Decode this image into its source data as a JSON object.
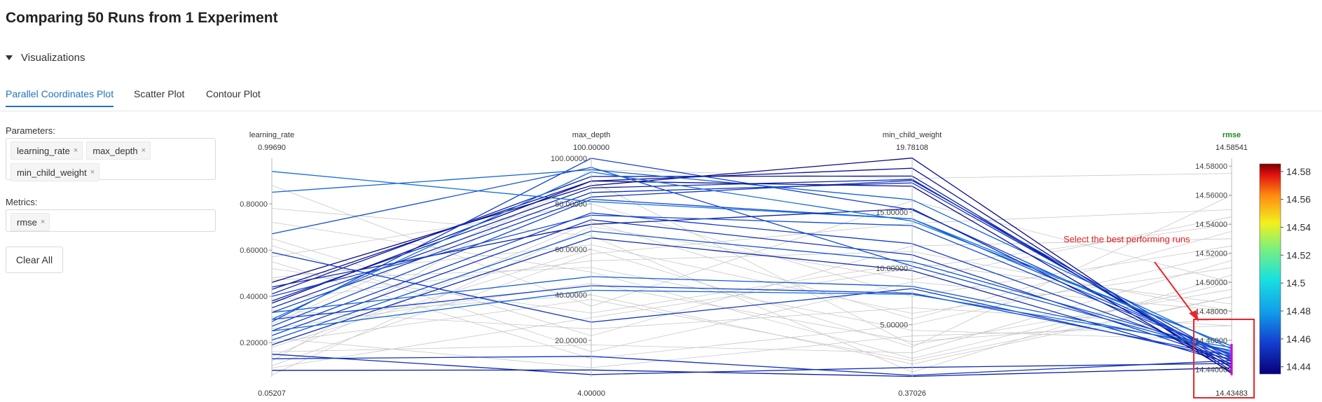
{
  "page": {
    "title": "Comparing 50 Runs from 1 Experiment"
  },
  "visualizations": {
    "label": "Visualizations"
  },
  "tabs": [
    {
      "label": "Parallel Coordinates Plot"
    },
    {
      "label": "Scatter Plot"
    },
    {
      "label": "Contour Plot"
    }
  ],
  "parameters": {
    "label": "Parameters:",
    "chips": [
      "learning_rate",
      "max_depth",
      "min_child_weight"
    ],
    "remove_glyph": "×"
  },
  "metrics": {
    "label": "Metrics:",
    "chips": [
      "rmse"
    ],
    "remove_glyph": "×"
  },
  "clear_all": {
    "label": "Clear All"
  },
  "annotation": {
    "text": "Select the best performing runs",
    "color": "#e02020"
  },
  "colors": {
    "highlight": "#e8262b",
    "brush": "#d500d5",
    "active_metric": "#1a8a1a",
    "context_line": "#c8c8c8"
  },
  "chart_data": {
    "type": "parallel_coordinates",
    "axes": [
      {
        "name": "learning_rate",
        "max_label": "0.99690",
        "min_label": "0.05207",
        "min": 0.05207,
        "max": 0.9969,
        "ticks": [
          0.2,
          0.4,
          0.6,
          0.8
        ],
        "tick_labels": [
          "0.20000",
          "0.40000",
          "0.60000",
          "0.80000"
        ]
      },
      {
        "name": "max_depth",
        "max_label": "100.00000",
        "min_label": "4.00000",
        "min": 4,
        "max": 100,
        "ticks": [
          20,
          40,
          60,
          80,
          100
        ],
        "tick_labels": [
          "20.00000",
          "40.00000",
          "60.00000",
          "80.00000",
          "100.00000"
        ]
      },
      {
        "name": "min_child_weight",
        "max_label": "19.78108",
        "min_label": "0.37026",
        "min": 0.37026,
        "max": 19.78108,
        "ticks": [
          5,
          10,
          15
        ],
        "tick_labels": [
          "5.00000",
          "10.00000",
          "15.00000"
        ]
      },
      {
        "name": "rmse",
        "max_label": "14.58541",
        "min_label": "14.43483",
        "min": 14.43483,
        "max": 14.58541,
        "highlighted": true,
        "ticks": [
          14.44,
          14.46,
          14.48,
          14.5,
          14.52,
          14.54,
          14.56,
          14.58
        ],
        "tick_labels": [
          "14.44000",
          "14.46000",
          "14.48000",
          "14.50000",
          "14.52000",
          "14.54000",
          "14.56000",
          "14.58000"
        ]
      }
    ],
    "colorscale": {
      "min": 14.43483,
      "max": 14.58541,
      "ticks": [
        14.44,
        14.46,
        14.48,
        14.5,
        14.52,
        14.54,
        14.56,
        14.58
      ],
      "tick_labels": [
        "14.44",
        "14.46",
        "14.48",
        "14.5",
        "14.52",
        "14.54",
        "14.56",
        "14.58"
      ]
    },
    "brush": {
      "axis": "rmse",
      "range": [
        14.436,
        14.4575
      ]
    },
    "runs": [
      [
        0.46,
        88,
        19.8,
        14.437
      ],
      [
        0.43,
        90,
        18.9,
        14.439
      ],
      [
        0.41,
        92,
        18.2,
        14.441
      ],
      [
        0.38,
        87,
        17.9,
        14.443
      ],
      [
        0.35,
        85,
        17.6,
        14.445
      ],
      [
        0.33,
        83,
        17.8,
        14.447
      ],
      [
        0.29,
        100,
        15.2,
        14.449
      ],
      [
        0.27,
        82,
        14.4,
        14.45
      ],
      [
        0.25,
        76,
        12.2,
        14.448
      ],
      [
        0.23,
        73,
        11.2,
        14.446
      ],
      [
        0.21,
        68,
        10.6,
        14.452
      ],
      [
        0.19,
        65,
        9.8,
        14.444
      ],
      [
        0.85,
        95,
        16.1,
        14.454
      ],
      [
        0.94,
        81,
        14.4,
        14.456
      ],
      [
        0.67,
        96,
        10.2,
        14.451
      ],
      [
        0.59,
        28,
        8.2,
        14.447
      ],
      [
        0.33,
        48,
        8.4,
        14.453
      ],
      [
        0.3,
        44,
        7.8,
        14.449
      ],
      [
        0.25,
        42,
        7.7,
        14.455
      ],
      [
        0.15,
        5,
        1.2,
        14.444
      ],
      [
        0.13,
        13,
        0.5,
        14.446
      ],
      [
        0.08,
        7,
        0.4,
        14.441
      ],
      [
        0.37,
        90,
        17.3,
        14.438
      ],
      [
        0.44,
        71,
        15.3,
        14.442
      ],
      [
        0.4,
        75,
        13.8,
        14.45
      ],
      [
        0.3,
        94,
        14.2,
        14.456
      ],
      [
        0.18,
        60,
        3.0,
        14.56
      ],
      [
        0.09,
        30,
        10.0,
        14.54
      ],
      [
        0.55,
        12,
        5.0,
        14.52
      ],
      [
        0.72,
        50,
        2.0,
        14.5
      ],
      [
        0.12,
        95,
        18.0,
        14.575
      ],
      [
        0.65,
        22,
        12.0,
        14.53
      ],
      [
        0.31,
        40,
        1.5,
        14.49
      ],
      [
        0.48,
        62,
        6.0,
        14.51
      ],
      [
        0.22,
        8,
        4.0,
        14.47
      ],
      [
        0.06,
        70,
        9.0,
        14.545
      ],
      [
        0.88,
        35,
        16.0,
        14.5
      ],
      [
        0.38,
        55,
        11.5,
        14.48
      ],
      [
        0.16,
        18,
        2.5,
        14.515
      ],
      [
        0.57,
        80,
        7.5,
        14.525
      ],
      [
        0.26,
        45,
        3.5,
        14.475
      ],
      [
        0.1,
        58,
        14.0,
        14.55
      ],
      [
        0.78,
        66,
        0.8,
        14.505
      ],
      [
        0.34,
        25,
        6.5,
        14.47
      ],
      [
        0.2,
        38,
        1.8,
        14.49
      ],
      [
        0.47,
        52,
        4.5,
        14.46
      ],
      [
        0.62,
        15,
        8.8,
        14.48
      ],
      [
        0.14,
        72,
        5.5,
        14.535
      ],
      [
        0.28,
        90,
        3.2,
        14.495
      ],
      [
        0.52,
        32,
        10.5,
        14.485
      ]
    ]
  }
}
